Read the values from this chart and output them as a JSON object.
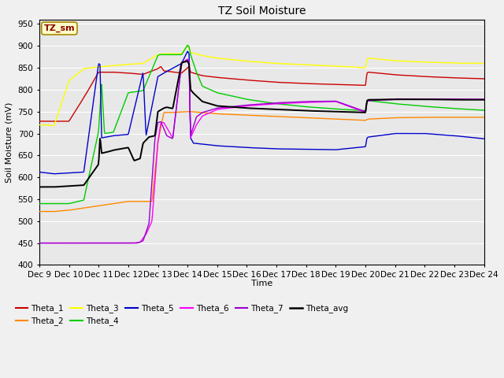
{
  "title": "TZ Soil Moisture",
  "xlabel": "Time",
  "ylabel": "Soil Moisture (mV)",
  "ylim": [
    400,
    960
  ],
  "yticks": [
    400,
    450,
    500,
    550,
    600,
    650,
    700,
    750,
    800,
    850,
    900,
    950
  ],
  "legend_label": "TZ_sm",
  "series_colors": {
    "Theta_1": "#cc0000",
    "Theta_2": "#ff8800",
    "Theta_3": "#ffff00",
    "Theta_4": "#00cc00",
    "Theta_5": "#0000cc",
    "Theta_6": "#ff00ff",
    "Theta_7": "#9900cc",
    "Theta_avg": "#000000"
  },
  "bg_color": "#e8e8e8",
  "grid_color": "#ffffff",
  "fig_bg": "#f0f0f0",
  "n_points": 800
}
